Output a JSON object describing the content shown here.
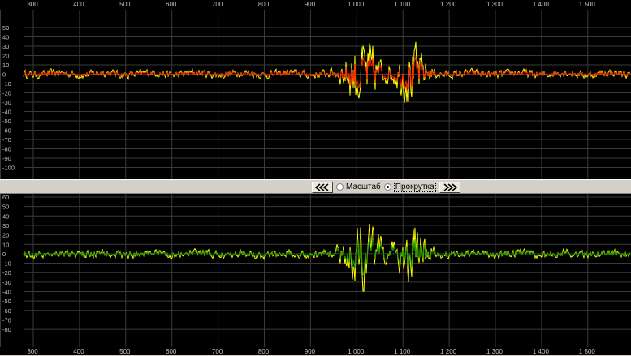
{
  "x_ticks": [
    "300",
    "400",
    "500",
    "600",
    "700",
    "800",
    "900",
    "1 000",
    "1 100",
    "1 200",
    "1 300",
    "1 400",
    "1 500"
  ],
  "top_plot": {
    "y_ticks": [
      "50",
      "40",
      "30",
      "20",
      "10",
      "0",
      "-10",
      "-20",
      "-30",
      "-40",
      "-50",
      "-60",
      "-70",
      "-80",
      "-90",
      "-100"
    ],
    "colors": {
      "raw": "#ffff00",
      "filtered": "#ff1e00",
      "grid": "#3a3a3a"
    }
  },
  "bottom_plot": {
    "y_ticks": [
      "60",
      "50",
      "40",
      "30",
      "20",
      "10",
      "0",
      "-10",
      "-20",
      "-30",
      "-40",
      "-50",
      "-60",
      "-70",
      "-80"
    ],
    "colors": {
      "raw": "#ffff00",
      "filtered": "#1a9a00",
      "grid": "#3a3a3a"
    }
  },
  "controls": {
    "scroll_left_icon": "double-chevron-left-icon",
    "scroll_right_icon": "double-chevron-right-icon",
    "zoom_label": "Масштаб",
    "scroll_label": "Прокрутка",
    "selected_mode": "Прокрутка"
  }
}
